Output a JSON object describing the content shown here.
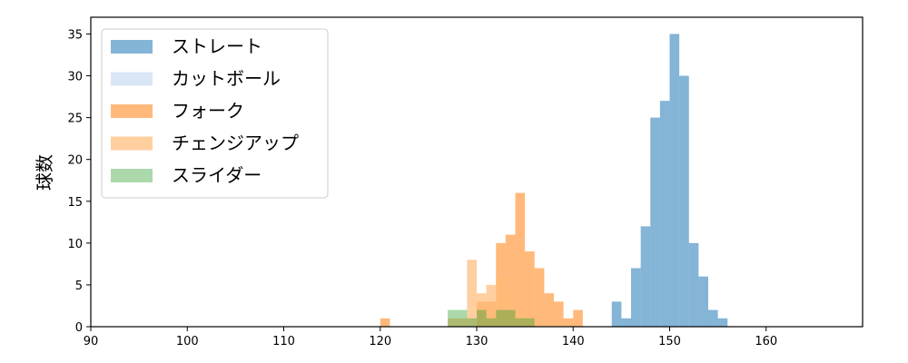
{
  "chart_data": {
    "type": "histogram",
    "title": "",
    "xlabel": "",
    "ylabel": "球数",
    "xlim": [
      90,
      170
    ],
    "ylim": [
      0,
      37
    ],
    "x_ticks": [
      90,
      100,
      110,
      120,
      130,
      140,
      150,
      160
    ],
    "y_ticks": [
      0,
      5,
      10,
      15,
      20,
      25,
      30,
      35
    ],
    "grid": false,
    "legend_position": "top-left",
    "series": [
      {
        "name": "ストレート",
        "color": "#1f77b4",
        "opacity": 0.55,
        "bins": [
          {
            "x0": 144.0,
            "x1": 145.0,
            "count": 3
          },
          {
            "x0": 145.0,
            "x1": 146.0,
            "count": 1
          },
          {
            "x0": 146.0,
            "x1": 147.0,
            "count": 7
          },
          {
            "x0": 147.0,
            "x1": 148.0,
            "count": 12
          },
          {
            "x0": 148.0,
            "x1": 149.0,
            "count": 25
          },
          {
            "x0": 149.0,
            "x1": 150.0,
            "count": 27
          },
          {
            "x0": 150.0,
            "x1": 151.0,
            "count": 35
          },
          {
            "x0": 151.0,
            "x1": 152.0,
            "count": 30
          },
          {
            "x0": 152.0,
            "x1": 153.0,
            "count": 10
          },
          {
            "x0": 153.0,
            "x1": 154.0,
            "count": 6
          },
          {
            "x0": 154.0,
            "x1": 155.0,
            "count": 2
          },
          {
            "x0": 155.0,
            "x1": 156.0,
            "count": 1
          }
        ]
      },
      {
        "name": "カットボール",
        "color": "#aec7e8",
        "opacity": 0.45,
        "bins": []
      },
      {
        "name": "フォーク",
        "color": "#ff7f0e",
        "opacity": 0.55,
        "bins": [
          {
            "x0": 120.0,
            "x1": 121.0,
            "count": 1
          },
          {
            "x0": 130.0,
            "x1": 131.0,
            "count": 3
          },
          {
            "x0": 131.0,
            "x1": 132.0,
            "count": 3
          },
          {
            "x0": 132.0,
            "x1": 133.0,
            "count": 10
          },
          {
            "x0": 133.0,
            "x1": 134.0,
            "count": 11
          },
          {
            "x0": 134.0,
            "x1": 135.0,
            "count": 16
          },
          {
            "x0": 135.0,
            "x1": 136.0,
            "count": 9
          },
          {
            "x0": 136.0,
            "x1": 137.0,
            "count": 7
          },
          {
            "x0": 137.0,
            "x1": 138.0,
            "count": 4
          },
          {
            "x0": 138.0,
            "x1": 139.0,
            "count": 3
          },
          {
            "x0": 139.0,
            "x1": 140.0,
            "count": 1
          },
          {
            "x0": 140.0,
            "x1": 141.0,
            "count": 2
          }
        ]
      },
      {
        "name": "チェンジアップ",
        "color": "#ffbb78",
        "opacity": 0.7,
        "bins": [
          {
            "x0": 127.0,
            "x1": 128.0,
            "count": 1
          },
          {
            "x0": 128.0,
            "x1": 129.0,
            "count": 1
          },
          {
            "x0": 129.0,
            "x1": 130.0,
            "count": 8
          },
          {
            "x0": 130.0,
            "x1": 131.0,
            "count": 4
          },
          {
            "x0": 131.0,
            "x1": 132.0,
            "count": 5
          },
          {
            "x0": 132.0,
            "x1": 133.0,
            "count": 6
          },
          {
            "x0": 133.0,
            "x1": 134.0,
            "count": 4
          },
          {
            "x0": 134.0,
            "x1": 135.0,
            "count": 2
          },
          {
            "x0": 135.0,
            "x1": 136.0,
            "count": 1
          }
        ]
      },
      {
        "name": "スライダー",
        "color": "#2ca02c",
        "opacity": 0.4,
        "bins": [
          {
            "x0": 127.0,
            "x1": 129.0,
            "count": 2
          },
          {
            "x0": 129.0,
            "x1": 130.0,
            "count": 1
          },
          {
            "x0": 130.0,
            "x1": 131.0,
            "count": 2
          },
          {
            "x0": 131.0,
            "x1": 132.0,
            "count": 1
          },
          {
            "x0": 132.0,
            "x1": 134.0,
            "count": 2
          },
          {
            "x0": 134.0,
            "x1": 136.0,
            "count": 1
          }
        ]
      }
    ]
  }
}
